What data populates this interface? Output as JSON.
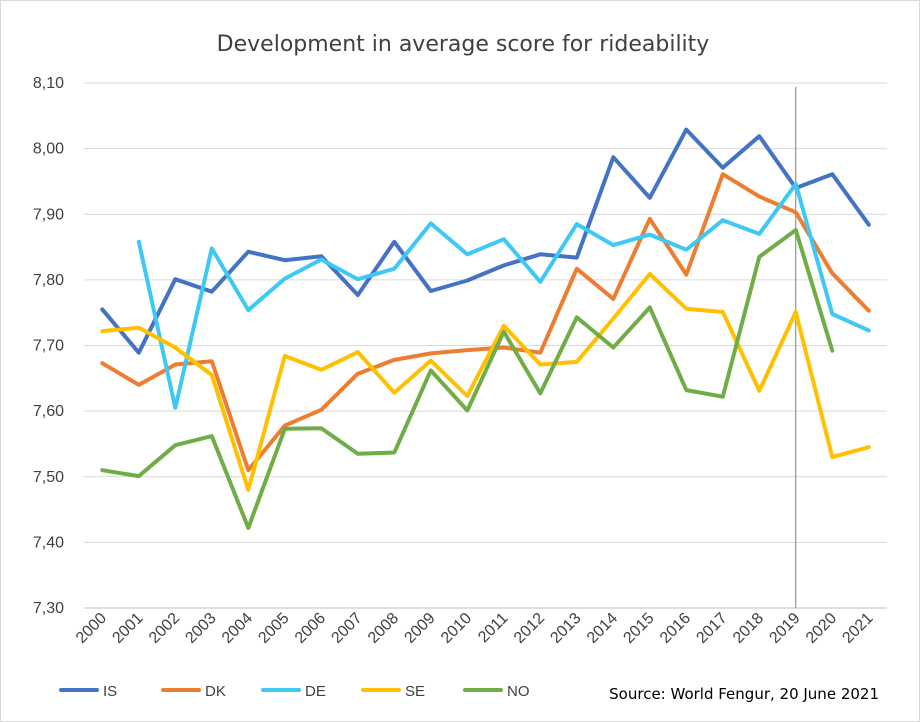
{
  "chart_data": {
    "type": "line",
    "title": "Development in average score for rideability",
    "source": "Source: World Fengur, 20 June 2021",
    "xlabel": "",
    "ylabel": "",
    "categories": [
      "2000",
      "2001",
      "2002",
      "2003",
      "2004",
      "2005",
      "2006",
      "2007",
      "2008",
      "2009",
      "2010",
      "2011",
      "2012",
      "2013",
      "2014",
      "2015",
      "2016",
      "2017",
      "2018",
      "2019",
      "2020",
      "2021"
    ],
    "yticks": [
      "7,30",
      "7,40",
      "7,50",
      "7,60",
      "7,70",
      "7,80",
      "7,90",
      "8,00",
      "8,10"
    ],
    "ylim": [
      7.3,
      8.1
    ],
    "grid": true,
    "legend_position": "bottom-left",
    "vline_at": "2019",
    "series": [
      {
        "name": "IS",
        "color": "#4472c4",
        "values": [
          7.755,
          7.689,
          7.801,
          7.782,
          7.843,
          7.83,
          7.836,
          7.777,
          7.858,
          7.783,
          7.799,
          7.822,
          7.839,
          7.834,
          7.987,
          7.925,
          8.029,
          7.971,
          8.019,
          7.94,
          7.961,
          7.884
        ]
      },
      {
        "name": "DK",
        "color": "#ed7d31",
        "values": [
          7.673,
          7.64,
          7.671,
          7.676,
          7.51,
          7.578,
          7.602,
          7.657,
          7.678,
          7.688,
          7.693,
          7.697,
          7.689,
          7.817,
          7.771,
          7.893,
          7.808,
          7.961,
          7.927,
          7.903,
          7.81,
          7.753
        ]
      },
      {
        "name": "DE",
        "color": "#3ec8f4",
        "values": [
          null,
          7.858,
          7.605,
          7.848,
          7.754,
          7.802,
          7.831,
          7.801,
          7.817,
          7.886,
          7.839,
          7.862,
          7.797,
          7.885,
          7.853,
          7.869,
          7.846,
          7.891,
          7.87,
          7.946,
          7.748,
          7.723
        ]
      },
      {
        "name": "SE",
        "color": "#ffc000",
        "values": [
          7.722,
          7.727,
          7.697,
          7.655,
          7.48,
          7.684,
          7.663,
          7.69,
          7.628,
          7.677,
          7.623,
          7.73,
          7.671,
          7.675,
          7.741,
          7.809,
          7.756,
          7.751,
          7.631,
          7.751,
          7.53,
          7.545
        ]
      },
      {
        "name": "NO",
        "color": "#70ad47",
        "values": [
          7.51,
          7.501,
          7.548,
          7.562,
          7.422,
          7.573,
          7.574,
          7.535,
          7.537,
          7.662,
          7.601,
          7.721,
          7.627,
          7.743,
          7.697,
          7.758,
          7.632,
          7.622,
          7.835,
          7.876,
          7.692,
          null
        ]
      }
    ]
  }
}
